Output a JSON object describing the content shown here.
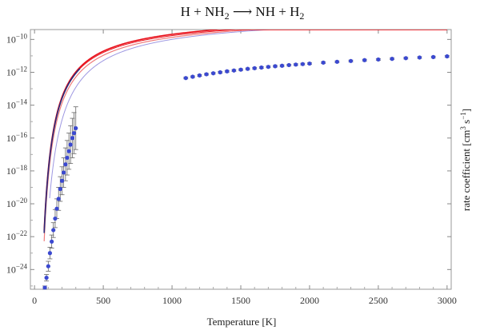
{
  "chart_data": {
    "type": "line",
    "title": "H + NH",
    "title_sub_1": "2",
    "title_mid": " ⟶ NH + H",
    "title_sub_2": "2",
    "xlabel": "Temperature [K]",
    "ylabel_prefix": "rate coefficient  [cm",
    "ylabel_exp1": "3",
    "ylabel_mid": " s",
    "ylabel_exp2": "−1",
    "ylabel_suffix": "]",
    "xlim": [
      -30,
      3030
    ],
    "ylim_log10": [
      -25.2,
      -9.4
    ],
    "y_scale": "log",
    "x_ticks": [
      0,
      500,
      1000,
      1500,
      2000,
      2500,
      3000
    ],
    "x_tick_labels": [
      "0",
      "500",
      "1000",
      "1500",
      "2000",
      "2500",
      "3000"
    ],
    "y_ticks_log10": [
      -10,
      -12,
      -14,
      -16,
      -18,
      -20,
      -22,
      -24
    ],
    "y_tick_base": "10",
    "y_tick_exps": [
      "−10",
      "−12",
      "−14",
      "−16",
      "−18",
      "−20",
      "−24"
    ],
    "y_tick_exps_all": [
      "−10",
      "−12",
      "−14",
      "−16",
      "−18",
      "−20",
      "−22",
      "−24"
    ],
    "grid": false,
    "colors": {
      "fit_main": "#e8101a",
      "fit_light": "#ef7a7a",
      "fit_blue": "#9e98e2",
      "fit_dark": "#2a2a7a",
      "points": "#3b49d0",
      "errorbar": "#666666"
    },
    "series": [
      {
        "type": "points_with_errors",
        "x": [
          75,
          87,
          100,
          112,
          125,
          137,
          150,
          162,
          175,
          187,
          200,
          212,
          225,
          237,
          250,
          262,
          275,
          287,
          300
        ],
        "log10y": [
          -25.1,
          -24.5,
          -23.8,
          -23.0,
          -22.3,
          -21.6,
          -20.9,
          -20.3,
          -19.7,
          -19.1,
          -18.6,
          -18.1,
          -17.6,
          -17.2,
          -16.8,
          -16.4,
          -16.0,
          -15.7,
          -15.4
        ],
        "err_log10": [
          0.1,
          0.2,
          0.3,
          0.35,
          0.4,
          0.45,
          0.55,
          0.6,
          0.7,
          0.75,
          0.85,
          0.9,
          1.0,
          1.05,
          1.1,
          1.15,
          1.2,
          1.25,
          1.3
        ]
      },
      {
        "type": "points_with_errors",
        "x": [
          1100,
          1150,
          1200,
          1250,
          1300,
          1350,
          1400,
          1450,
          1500,
          1550,
          1600,
          1650,
          1700,
          1750,
          1800,
          1850,
          1900,
          1950,
          2000,
          2100,
          2200,
          2300,
          2400,
          2500,
          2600,
          2700,
          2800,
          2900,
          3000
        ],
        "log10y": [
          -12.35,
          -12.27,
          -12.19,
          -12.12,
          -12.06,
          -12.0,
          -11.94,
          -11.89,
          -11.84,
          -11.79,
          -11.75,
          -11.71,
          -11.67,
          -11.63,
          -11.6,
          -11.56,
          -11.53,
          -11.5,
          -11.47,
          -11.41,
          -11.36,
          -11.31,
          -11.26,
          -11.22,
          -11.18,
          -11.14,
          -11.1,
          -11.07,
          -11.03
        ],
        "err_log10": [
          0.05,
          0.05,
          0.05,
          0.05,
          0.05,
          0.05,
          0.05,
          0.05,
          0.05,
          0.05,
          0.05,
          0.05,
          0.05,
          0.05,
          0.05,
          0.05,
          0.05,
          0.05,
          0.05,
          0.05,
          0.05,
          0.05,
          0.05,
          0.05,
          0.05,
          0.05,
          0.05,
          0.05,
          0.05
        ]
      }
    ]
  }
}
